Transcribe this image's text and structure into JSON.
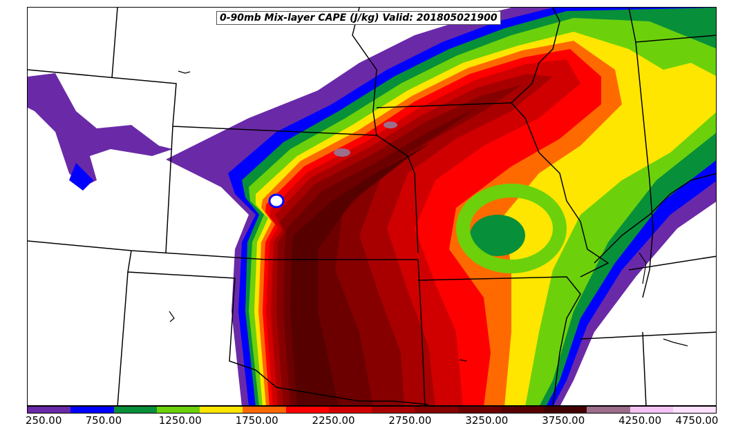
{
  "title": "0-90mb Mix-layer CAPE (J/kg) Valid: 201805021900",
  "colorbar": {
    "colors": [
      "#6a2aa8",
      "#0000ff",
      "#088f3a",
      "#6cd10b",
      "#ffe600",
      "#ff6a00",
      "#ff0000",
      "#d00000",
      "#a80000",
      "#860000",
      "#6c0000",
      "#560000",
      "#420000",
      "#9c6e8c",
      "#f4c4f4",
      "#fde0fd"
    ],
    "tick_labels": [
      "250.00",
      "750.00",
      "1250.00",
      "1750.00",
      "2250.00",
      "2750.00",
      "3250.00",
      "3750.00",
      "4250.00",
      "4750.00"
    ]
  }
}
